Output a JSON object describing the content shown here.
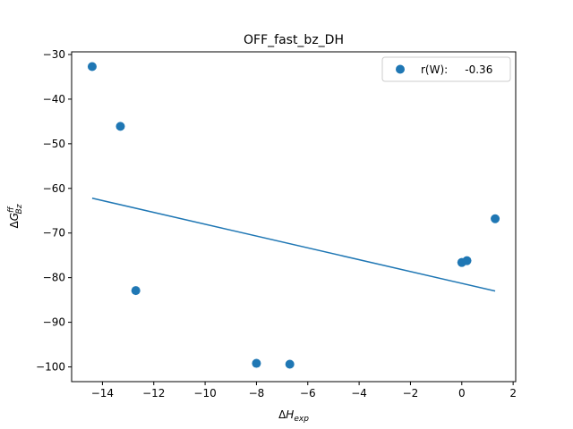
{
  "chart_data": {
    "type": "scatter",
    "title": "OFF_fast_bz_DH",
    "xlabel": "ΔH_exp",
    "ylabel": "ΔG^ff_Bz",
    "xlim": [
      -15.2,
      2.1
    ],
    "ylim": [
      -103.3,
      -29.4
    ],
    "x_ticks": [
      -14,
      -12,
      -10,
      -8,
      -6,
      -4,
      -2,
      0,
      2
    ],
    "y_ticks": [
      -100,
      -90,
      -80,
      -70,
      -60,
      -50,
      -40,
      -30
    ],
    "x_tick_labels": [
      "−14",
      "−12",
      "−10",
      "−8",
      "−6",
      "−4",
      "−2",
      "0",
      "2"
    ],
    "y_tick_labels": [
      "−100",
      "−90",
      "−80",
      "−70",
      "−60",
      "−50",
      "−40",
      "−30"
    ],
    "grid": false,
    "legend_position": "top-right",
    "series": [
      {
        "name": "r(W):     -0.36",
        "color": "#1f77b4",
        "points": [
          {
            "x": -14.4,
            "y": -32.7
          },
          {
            "x": -13.3,
            "y": -46.1
          },
          {
            "x": -12.7,
            "y": -82.9
          },
          {
            "x": -8.0,
            "y": -99.2
          },
          {
            "x": -6.7,
            "y": -99.4
          },
          {
            "x": 0.0,
            "y": -76.6
          },
          {
            "x": 0.2,
            "y": -76.2
          },
          {
            "x": 1.3,
            "y": -66.8
          }
        ]
      }
    ],
    "fit_line": {
      "color": "#1f77b4",
      "x": [
        -14.4,
        1.3
      ],
      "y": [
        -62.2,
        -83.0
      ]
    }
  }
}
